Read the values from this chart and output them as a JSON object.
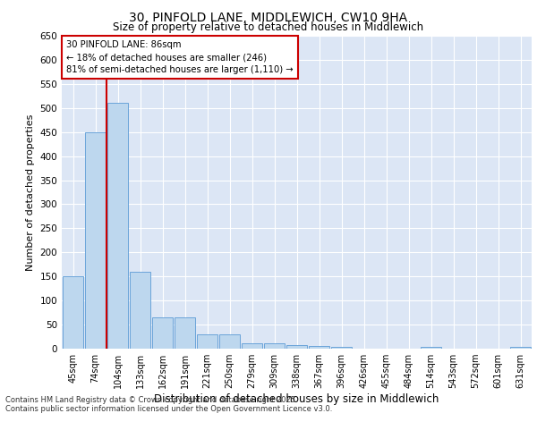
{
  "title_line1": "30, PINFOLD LANE, MIDDLEWICH, CW10 9HA",
  "title_line2": "Size of property relative to detached houses in Middlewich",
  "xlabel": "Distribution of detached houses by size in Middlewich",
  "ylabel": "Number of detached properties",
  "categories": [
    "45sqm",
    "74sqm",
    "104sqm",
    "133sqm",
    "162sqm",
    "191sqm",
    "221sqm",
    "250sqm",
    "279sqm",
    "309sqm",
    "338sqm",
    "367sqm",
    "396sqm",
    "426sqm",
    "455sqm",
    "484sqm",
    "514sqm",
    "543sqm",
    "572sqm",
    "601sqm",
    "631sqm"
  ],
  "values": [
    150,
    450,
    510,
    160,
    65,
    65,
    30,
    30,
    12,
    12,
    8,
    5,
    3,
    0,
    0,
    0,
    4,
    0,
    0,
    0,
    4
  ],
  "bar_color": "#bdd7ee",
  "bar_edge_color": "#5b9bd5",
  "vline_x": 1.5,
  "vline_color": "#cc0000",
  "annotation_title": "30 PINFOLD LANE: 86sqm",
  "annotation_line2": "← 18% of detached houses are smaller (246)",
  "annotation_line3": "81% of semi-detached houses are larger (1,110) →",
  "annotation_box_color": "#cc0000",
  "ylim": [
    0,
    650
  ],
  "yticks": [
    0,
    50,
    100,
    150,
    200,
    250,
    300,
    350,
    400,
    450,
    500,
    550,
    600,
    650
  ],
  "background_color": "#dce6f5",
  "footnote_line1": "Contains HM Land Registry data © Crown copyright and database right 2025.",
  "footnote_line2": "Contains public sector information licensed under the Open Government Licence v3.0."
}
